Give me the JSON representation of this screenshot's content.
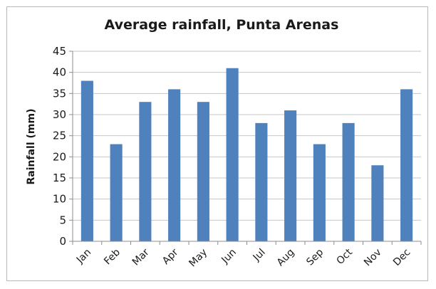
{
  "chart_data": {
    "type": "bar",
    "title": "Average rainfall, Punta Arenas",
    "xlabel": "",
    "ylabel": "Rainfall (mm)",
    "ylim": [
      0,
      45
    ],
    "yticks": [
      0,
      5,
      10,
      15,
      20,
      25,
      30,
      35,
      40,
      45
    ],
    "grid": true,
    "legend": "none",
    "categories": [
      "Jan",
      "Feb",
      "Mar",
      "Apr",
      "May",
      "Jun",
      "Jul",
      "Aug",
      "Sep",
      "Oct",
      "Nov",
      "Dec"
    ],
    "values": [
      38,
      23,
      33,
      36,
      33,
      41,
      28,
      31,
      23,
      28,
      18,
      36
    ],
    "bar_color": "#4f81bd"
  }
}
